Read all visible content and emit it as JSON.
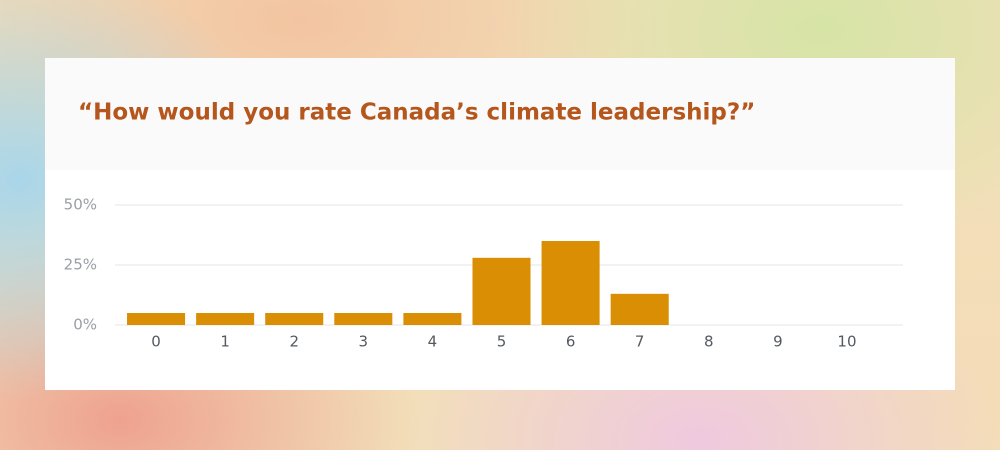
{
  "chart_data": {
    "type": "bar",
    "title": "“How would you rate Canada’s climate leadership?”",
    "categories": [
      "0",
      "1",
      "2",
      "3",
      "4",
      "5",
      "6",
      "7",
      "8",
      "9",
      "10"
    ],
    "values": [
      5,
      5,
      5,
      5,
      5,
      28,
      35,
      13,
      0,
      0,
      0
    ],
    "color": "#d98e04",
    "ylim": [
      0,
      50
    ],
    "yticks": [
      {
        "value": 0,
        "label": "0%"
      },
      {
        "value": 25,
        "label": "25%"
      },
      {
        "value": 50,
        "label": "50%"
      }
    ],
    "grid": true
  }
}
